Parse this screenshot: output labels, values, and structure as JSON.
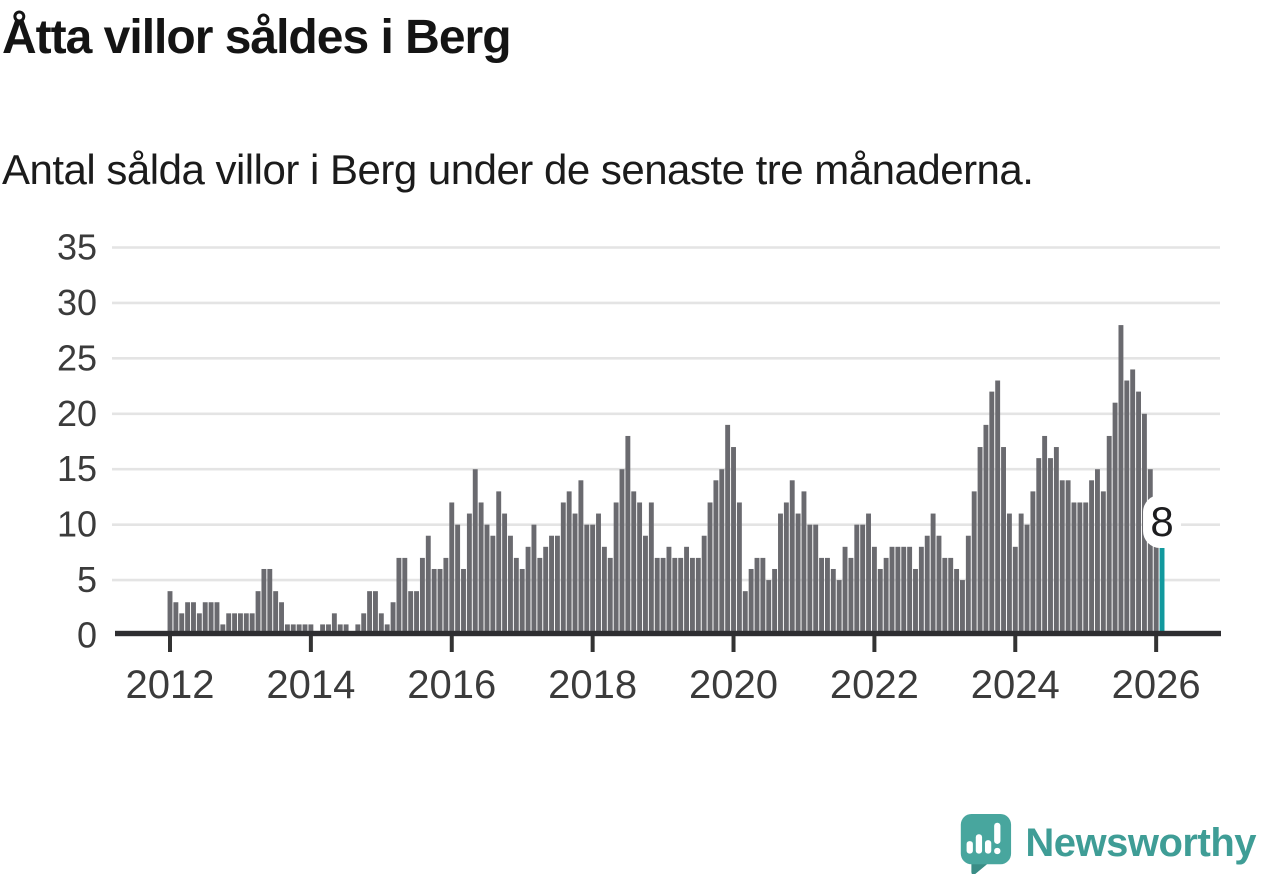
{
  "header": {
    "title": "Åtta villor såldes i Berg",
    "subtitle": "Antal sålda villor i Berg under de senaste tre månaderna."
  },
  "chart_data": {
    "type": "bar",
    "title": "Åtta villor såldes i Berg",
    "subtitle": "Antal sålda villor i Berg under de senaste tre månaderna.",
    "unit": "sålda villor (rullande 3 månader)",
    "frequency": "monthly",
    "x_start": "2012-01",
    "x_end": "2026-02",
    "values": [
      4,
      3,
      2,
      3,
      3,
      2,
      3,
      3,
      3,
      1,
      2,
      2,
      2,
      2,
      2,
      4,
      6,
      6,
      4,
      3,
      1,
      1,
      1,
      1,
      1,
      0,
      1,
      1,
      2,
      1,
      1,
      0,
      1,
      2,
      4,
      4,
      2,
      1,
      3,
      7,
      7,
      4,
      4,
      7,
      9,
      6,
      6,
      7,
      12,
      10,
      6,
      11,
      15,
      12,
      10,
      9,
      13,
      11,
      9,
      7,
      6,
      8,
      10,
      7,
      8,
      9,
      9,
      12,
      13,
      11,
      14,
      10,
      10,
      11,
      8,
      7,
      12,
      15,
      18,
      13,
      12,
      9,
      12,
      7,
      7,
      8,
      7,
      7,
      8,
      7,
      7,
      9,
      12,
      14,
      15,
      19,
      17,
      12,
      4,
      6,
      7,
      7,
      5,
      6,
      11,
      12,
      14,
      11,
      13,
      10,
      10,
      7,
      7,
      6,
      5,
      8,
      7,
      10,
      10,
      11,
      8,
      6,
      7,
      8,
      8,
      8,
      8,
      6,
      8,
      9,
      11,
      9,
      7,
      7,
      6,
      5,
      9,
      13,
      17,
      19,
      22,
      23,
      17,
      11,
      8,
      11,
      10,
      13,
      16,
      18,
      16,
      17,
      14,
      14,
      12,
      12,
      12,
      14,
      15,
      13,
      18,
      21,
      28,
      23,
      24,
      22,
      20,
      15,
      9,
      8
    ],
    "ylim": [
      0,
      35
    ],
    "y_ticks": [
      0,
      5,
      10,
      15,
      20,
      25,
      30,
      35
    ],
    "x_tick_labels": [
      "2012",
      "2014",
      "2016",
      "2018",
      "2020",
      "2022",
      "2024",
      "2026"
    ],
    "x_tick_month_interval": 24,
    "grid": true,
    "legend": false,
    "bar_color": "#6a6a6f",
    "highlight_color": "#12999e",
    "highlight_index": 169,
    "annotation": {
      "label": "8",
      "applies_to": "last-bar"
    },
    "axis_color": "#2e2e31",
    "grid_color": "#e4e4e4",
    "tick_label_color": "#3b3b3b"
  },
  "branding": {
    "name": "Newsworthy",
    "color": "#3f9d96",
    "icon": "newsworthy-speech-bubble-chart-icon"
  }
}
